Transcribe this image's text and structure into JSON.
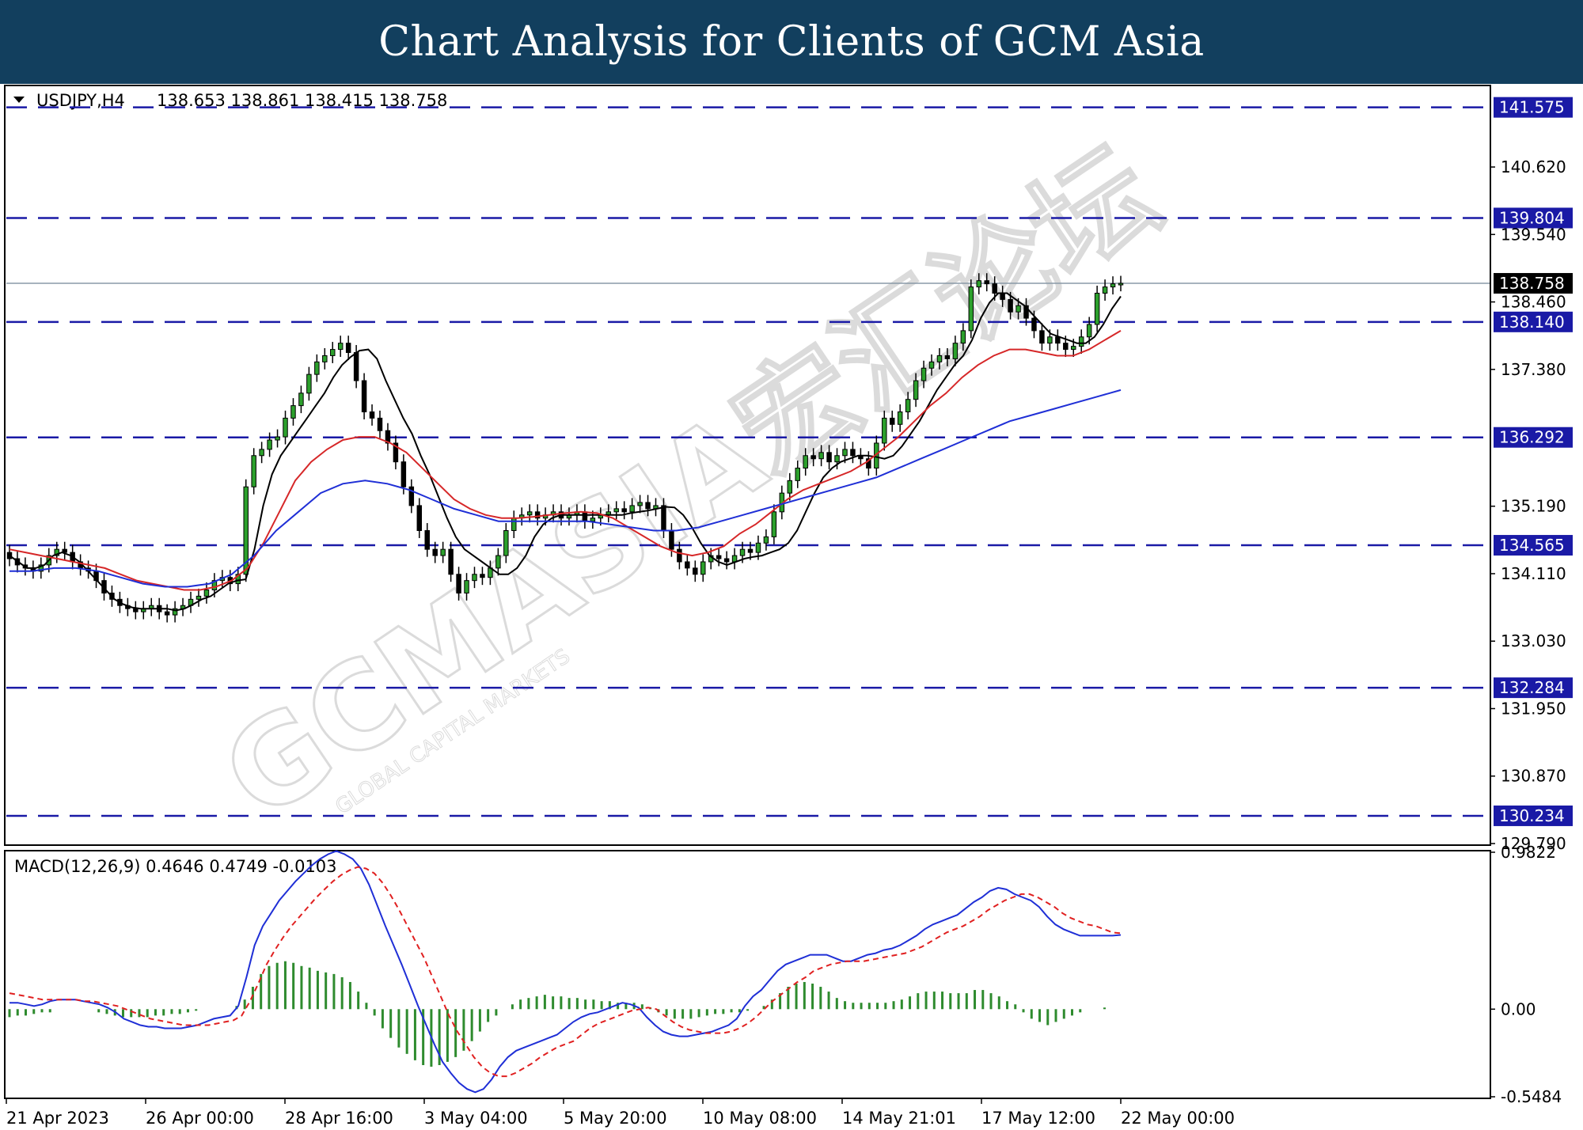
{
  "header": {
    "title": "Chart Analysis for Clients of GCM Asia"
  },
  "watermark": {
    "text": "GCMASIA宏汇论坛",
    "subtext": "GLOBAL CAPITAL MARKETS"
  },
  "colors": {
    "banner": "#123f5e",
    "level_line": "#1a1aa6",
    "bull_candle": "#2ca02c",
    "bear_candle": "#000000",
    "ma_fast": "#000000",
    "ma_mid": "#d62728",
    "ma_slow": "#1f2fd6",
    "macd_hist": "#2e8b2e",
    "macd_line": "#1f2fd6",
    "signal_line": "#e02020"
  },
  "chart_data": [
    {
      "type": "candlestick",
      "symbol": "USDJPY,H4",
      "header_label": "USDJPY,H4",
      "ohlc_label": "138.653 138.861 138.415 138.758",
      "current_price": 138.758,
      "current_price_label": "138.758",
      "ylim": [
        129.79,
        141.9
      ],
      "y_ticks": [
        "140.620",
        "139.540",
        "138.460",
        "137.380",
        "135.190",
        "134.110",
        "133.030",
        "131.950",
        "130.870",
        "129.790"
      ],
      "x_ticks": [
        "21 Apr 2023",
        "26 Apr 00:00",
        "28 Apr 16:00",
        "3 May 04:00",
        "5 May 20:00",
        "10 May 08:00",
        "14 May 21:01",
        "17 May 12:00",
        "22 May 00:00"
      ],
      "levels": [
        "141.575",
        "139.804",
        "138.140",
        "136.292",
        "134.565",
        "132.284",
        "130.234"
      ],
      "closes": [
        134.35,
        134.25,
        134.2,
        134.15,
        134.25,
        134.4,
        134.5,
        134.45,
        134.3,
        134.2,
        134.15,
        134.0,
        133.8,
        133.7,
        133.6,
        133.55,
        133.5,
        133.55,
        133.6,
        133.5,
        133.45,
        133.55,
        133.6,
        133.7,
        133.75,
        133.85,
        134.0,
        134.05,
        133.95,
        134.1,
        135.5,
        136.0,
        136.1,
        136.25,
        136.3,
        136.6,
        136.8,
        137.0,
        137.3,
        137.5,
        137.6,
        137.7,
        137.8,
        137.65,
        137.2,
        136.7,
        136.6,
        136.4,
        136.2,
        135.9,
        135.5,
        135.2,
        134.8,
        134.5,
        134.4,
        134.5,
        134.1,
        133.8,
        134.0,
        134.1,
        134.05,
        134.2,
        134.4,
        134.8,
        135.0,
        135.05,
        135.1,
        135.0,
        135.05,
        135.1,
        135.0,
        135.05,
        135.1,
        134.95,
        135.0,
        135.05,
        135.1,
        135.15,
        135.1,
        135.2,
        135.25,
        135.15,
        135.2,
        134.8,
        134.5,
        134.3,
        134.2,
        134.1,
        134.3,
        134.4,
        134.35,
        134.3,
        134.4,
        134.5,
        134.45,
        134.6,
        134.7,
        135.1,
        135.4,
        135.6,
        135.8,
        136.0,
        135.95,
        136.05,
        135.9,
        136.0,
        136.1,
        136.0,
        135.95,
        135.8,
        136.2,
        136.6,
        136.5,
        136.7,
        136.9,
        137.2,
        137.4,
        137.5,
        137.6,
        137.55,
        137.8,
        138.0,
        138.7,
        138.8,
        138.75,
        138.6,
        138.5,
        138.3,
        138.4,
        138.2,
        138.0,
        137.8,
        137.9,
        137.8,
        137.7,
        137.75,
        137.9,
        138.1,
        138.6,
        138.7,
        138.75,
        138.758
      ],
      "series": [
        {
          "name": "",
          "values": [
            134.4,
            134.3,
            134.2,
            134.2,
            134.25,
            134.4,
            134.45,
            134.4,
            134.3,
            134.15,
            134.0,
            133.85,
            133.7,
            133.62,
            133.57,
            133.55,
            133.55,
            133.55,
            133.55,
            133.52,
            133.55,
            133.62,
            133.7,
            133.75,
            133.85,
            133.95,
            134.0,
            134.02,
            134.5,
            135.2,
            135.7,
            136.0,
            136.2,
            136.4,
            136.6,
            136.8,
            137.0,
            137.25,
            137.45,
            137.58,
            137.68,
            137.7,
            137.55,
            137.2,
            136.9,
            136.6,
            136.35,
            136.0,
            135.7,
            135.35,
            135.0,
            134.7,
            134.5,
            134.4,
            134.3,
            134.2,
            134.1,
            134.1,
            134.2,
            134.4,
            134.7,
            134.9,
            135.0,
            135.05,
            135.05,
            135.05,
            135.05,
            135.05,
            135.05,
            135.05,
            135.05,
            135.08,
            135.1,
            135.12,
            135.15,
            135.18,
            135.17,
            135.05,
            134.85,
            134.6,
            134.4,
            134.3,
            134.25,
            134.3,
            134.35,
            134.38,
            134.4,
            134.45,
            134.5,
            134.6,
            134.8,
            135.1,
            135.4,
            135.65,
            135.8,
            135.9,
            135.95,
            136.0,
            136.0,
            135.98,
            135.95,
            136.0,
            136.15,
            136.35,
            136.55,
            136.8,
            137.05,
            137.25,
            137.45,
            137.6,
            137.85,
            138.2,
            138.45,
            138.6,
            138.6,
            138.5,
            138.4,
            138.25,
            138.1,
            137.95,
            137.9,
            137.85,
            137.8,
            137.8,
            137.9,
            138.1,
            138.35,
            138.55
          ]
        },
        {
          "name": "",
          "values": [
            134.5,
            134.45,
            134.4,
            134.35,
            134.3,
            134.25,
            134.2,
            134.1,
            134.0,
            133.95,
            133.9,
            133.85,
            133.85,
            133.9,
            134.0,
            134.2,
            134.6,
            135.1,
            135.6,
            135.9,
            136.1,
            136.25,
            136.3,
            136.3,
            136.2,
            136.05,
            135.8,
            135.55,
            135.3,
            135.15,
            135.05,
            135.0,
            135.0,
            135.02,
            135.05,
            135.08,
            135.1,
            135.08,
            135.0,
            134.85,
            134.7,
            134.55,
            134.45,
            134.4,
            134.45,
            134.55,
            134.75,
            134.9,
            135.1,
            135.3,
            135.45,
            135.55,
            135.65,
            135.75,
            135.9,
            136.1,
            136.3,
            136.55,
            136.8,
            137.0,
            137.25,
            137.45,
            137.6,
            137.7,
            137.7,
            137.65,
            137.6,
            137.6,
            137.7,
            137.85,
            138.0
          ]
        },
        {
          "name": "",
          "values": [
            134.15,
            134.15,
            134.2,
            134.2,
            134.15,
            134.05,
            133.95,
            133.9,
            133.9,
            133.95,
            134.1,
            134.4,
            134.8,
            135.1,
            135.4,
            135.55,
            135.6,
            135.55,
            135.45,
            135.3,
            135.15,
            135.05,
            134.95,
            134.95,
            134.95,
            134.95,
            134.95,
            134.9,
            134.85,
            134.8,
            134.8,
            134.85,
            134.95,
            135.05,
            135.15,
            135.25,
            135.35,
            135.45,
            135.55,
            135.65,
            135.8,
            135.95,
            136.1,
            136.25,
            136.4,
            136.55,
            136.65,
            136.75,
            136.85,
            136.95,
            137.05
          ]
        }
      ]
    },
    {
      "type": "bar_line",
      "header_label": "MACD(12,26,9) 0.4646 0.4749 -0.0103",
      "ylim": [
        -0.5484,
        0.9822
      ],
      "y_ticks": [
        "0.9822",
        "0.00",
        "-0.5484"
      ],
      "histogram": [
        -0.05,
        -0.04,
        -0.04,
        -0.03,
        -0.02,
        -0.02,
        0.0,
        0.0,
        0.0,
        0.0,
        0.0,
        -0.02,
        -0.03,
        -0.04,
        -0.05,
        -0.05,
        -0.05,
        -0.05,
        -0.04,
        -0.04,
        -0.03,
        -0.03,
        -0.02,
        -0.01,
        0.0,
        0.0,
        0.0,
        0.0,
        0.02,
        0.06,
        0.14,
        0.22,
        0.27,
        0.29,
        0.3,
        0.29,
        0.27,
        0.26,
        0.24,
        0.23,
        0.22,
        0.2,
        0.17,
        0.11,
        0.04,
        -0.04,
        -0.12,
        -0.18,
        -0.24,
        -0.28,
        -0.32,
        -0.35,
        -0.36,
        -0.35,
        -0.33,
        -0.3,
        -0.26,
        -0.2,
        -0.14,
        -0.08,
        -0.04,
        0.0,
        0.03,
        0.06,
        0.07,
        0.08,
        0.09,
        0.08,
        0.08,
        0.07,
        0.07,
        0.06,
        0.06,
        0.05,
        0.05,
        0.04,
        0.04,
        0.04,
        0.03,
        0.01,
        -0.02,
        -0.04,
        -0.06,
        -0.06,
        -0.06,
        -0.05,
        -0.04,
        -0.03,
        -0.03,
        -0.02,
        -0.02,
        -0.01,
        0.0,
        0.02,
        0.06,
        0.1,
        0.14,
        0.16,
        0.17,
        0.16,
        0.14,
        0.11,
        0.07,
        0.05,
        0.04,
        0.04,
        0.04,
        0.04,
        0.04,
        0.05,
        0.06,
        0.08,
        0.1,
        0.11,
        0.11,
        0.11,
        0.1,
        0.1,
        0.1,
        0.12,
        0.12,
        0.1,
        0.08,
        0.05,
        0.03,
        -0.02,
        -0.06,
        -0.08,
        -0.1,
        -0.08,
        -0.06,
        -0.04,
        -0.02,
        0.0,
        0.0,
        0.01,
        0.0,
        0.0
      ],
      "series": [
        {
          "name": "",
          "values": [
            0.04,
            0.04,
            0.03,
            0.02,
            0.03,
            0.05,
            0.06,
            0.06,
            0.06,
            0.05,
            0.04,
            0.03,
            0.01,
            -0.02,
            -0.06,
            -0.08,
            -0.1,
            -0.11,
            -0.11,
            -0.12,
            -0.12,
            -0.12,
            -0.11,
            -0.1,
            -0.08,
            -0.06,
            -0.05,
            -0.04,
            0.02,
            0.2,
            0.4,
            0.52,
            0.6,
            0.68,
            0.74,
            0.8,
            0.85,
            0.9,
            0.94,
            0.97,
            0.99,
            0.97,
            0.94,
            0.88,
            0.78,
            0.65,
            0.52,
            0.4,
            0.28,
            0.15,
            0.02,
            -0.1,
            -0.22,
            -0.33,
            -0.4,
            -0.46,
            -0.5,
            -0.52,
            -0.5,
            -0.44,
            -0.36,
            -0.3,
            -0.26,
            -0.24,
            -0.22,
            -0.2,
            -0.18,
            -0.16,
            -0.12,
            -0.08,
            -0.05,
            -0.03,
            -0.02,
            0.0,
            0.02,
            0.04,
            0.03,
            0.01,
            -0.05,
            -0.1,
            -0.14,
            -0.16,
            -0.17,
            -0.17,
            -0.16,
            -0.15,
            -0.14,
            -0.12,
            -0.1,
            -0.06,
            0.02,
            0.08,
            0.12,
            0.18,
            0.24,
            0.28,
            0.3,
            0.32,
            0.34,
            0.34,
            0.34,
            0.32,
            0.3,
            0.3,
            0.32,
            0.34,
            0.35,
            0.37,
            0.38,
            0.4,
            0.43,
            0.46,
            0.5,
            0.53,
            0.55,
            0.57,
            0.59,
            0.63,
            0.67,
            0.7,
            0.74,
            0.76,
            0.75,
            0.72,
            0.7,
            0.68,
            0.64,
            0.58,
            0.53,
            0.5,
            0.48,
            0.46,
            0.46,
            0.46,
            0.46,
            0.46,
            0.4646
          ]
        },
        {
          "name": "",
          "values": [
            0.1,
            0.09,
            0.08,
            0.07,
            0.06,
            0.06,
            0.06,
            0.06,
            0.06,
            0.05,
            0.05,
            0.04,
            0.03,
            0.02,
            0.0,
            -0.02,
            -0.04,
            -0.06,
            -0.07,
            -0.08,
            -0.09,
            -0.1,
            -0.1,
            -0.1,
            -0.1,
            -0.09,
            -0.08,
            -0.07,
            -0.04,
            0.05,
            0.16,
            0.28,
            0.37,
            0.45,
            0.52,
            0.58,
            0.64,
            0.7,
            0.75,
            0.8,
            0.84,
            0.87,
            0.89,
            0.88,
            0.85,
            0.79,
            0.71,
            0.62,
            0.52,
            0.42,
            0.32,
            0.2,
            0.08,
            -0.04,
            -0.14,
            -0.22,
            -0.3,
            -0.36,
            -0.4,
            -0.42,
            -0.42,
            -0.4,
            -0.37,
            -0.34,
            -0.3,
            -0.27,
            -0.24,
            -0.22,
            -0.2,
            -0.16,
            -0.12,
            -0.09,
            -0.07,
            -0.05,
            -0.03,
            -0.01,
            0.0,
            0.01,
            0.0,
            -0.04,
            -0.08,
            -0.11,
            -0.13,
            -0.14,
            -0.15,
            -0.15,
            -0.15,
            -0.14,
            -0.12,
            -0.09,
            -0.05,
            0.0,
            0.05,
            0.09,
            0.13,
            0.17,
            0.2,
            0.24,
            0.26,
            0.28,
            0.29,
            0.3,
            0.3,
            0.3,
            0.31,
            0.32,
            0.33,
            0.34,
            0.35,
            0.37,
            0.39,
            0.42,
            0.45,
            0.48,
            0.5,
            0.52,
            0.55,
            0.58,
            0.62,
            0.65,
            0.68,
            0.7,
            0.72,
            0.72,
            0.7,
            0.67,
            0.64,
            0.6,
            0.57,
            0.55,
            0.53,
            0.52,
            0.5,
            0.48,
            0.4749
          ]
        }
      ]
    }
  ]
}
